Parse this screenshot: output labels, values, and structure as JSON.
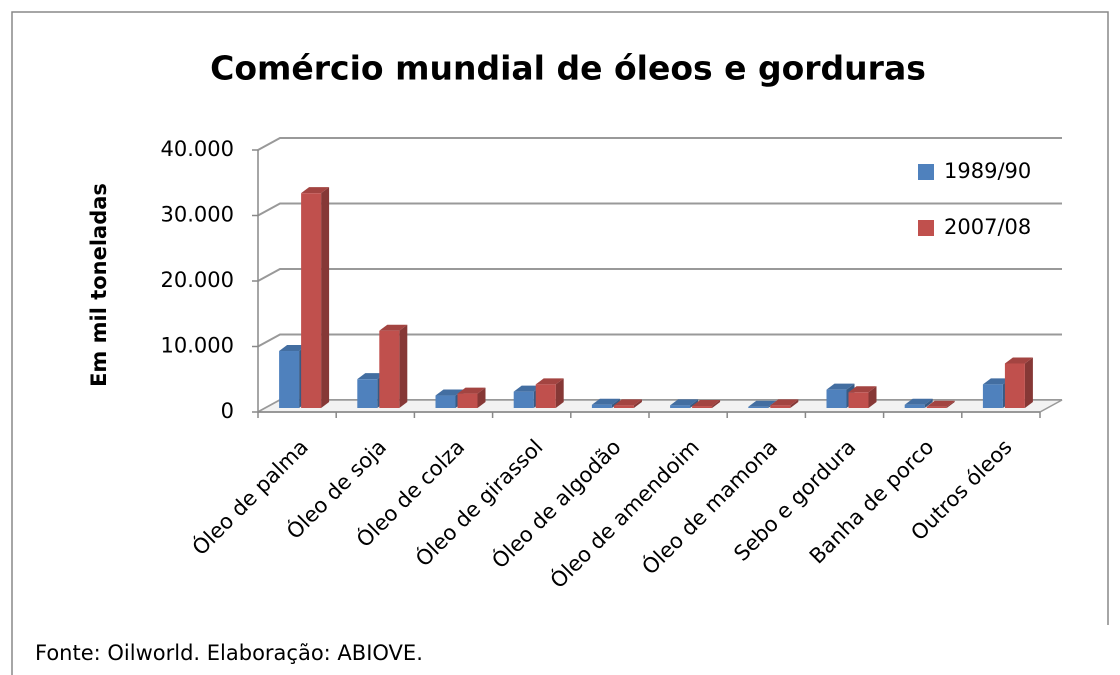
{
  "chart_data": {
    "type": "bar3d",
    "title": "Comércio mundial de óleos e gorduras",
    "y_label": "Em mil toneladas",
    "source": "Fonte: Oilworld. Elaboração:  ABIOVE.",
    "categories": [
      "Óleo de palma",
      "Óleo de soja",
      "Óleo de colza",
      "Óleo de girassol",
      "Óleo de algodão",
      "Óleo de amendoim",
      "Óleo de mamona",
      "Sebo e gordura",
      "Banha de porco",
      "Outros óleos"
    ],
    "series": [
      {
        "name": "1989/90",
        "color": "#4f81bd",
        "values": [
          8700,
          4400,
          1900,
          2500,
          500,
          400,
          200,
          2800,
          500,
          3600
        ]
      },
      {
        "name": "2007/08",
        "color": "#c0504d",
        "values": [
          32800,
          11800,
          2200,
          3600,
          400,
          300,
          400,
          2400,
          200,
          6800
        ]
      }
    ],
    "ylim": [
      0,
      40000
    ],
    "yticks": [
      0,
      {
        "value": 10000,
        "label": "10.000"
      },
      {
        "value": 20000,
        "label": "20.000"
      },
      {
        "value": 30000,
        "label": "30.000"
      },
      {
        "value": 40000,
        "label": "40.000"
      }
    ],
    "grid": true,
    "legend": "upper right"
  }
}
